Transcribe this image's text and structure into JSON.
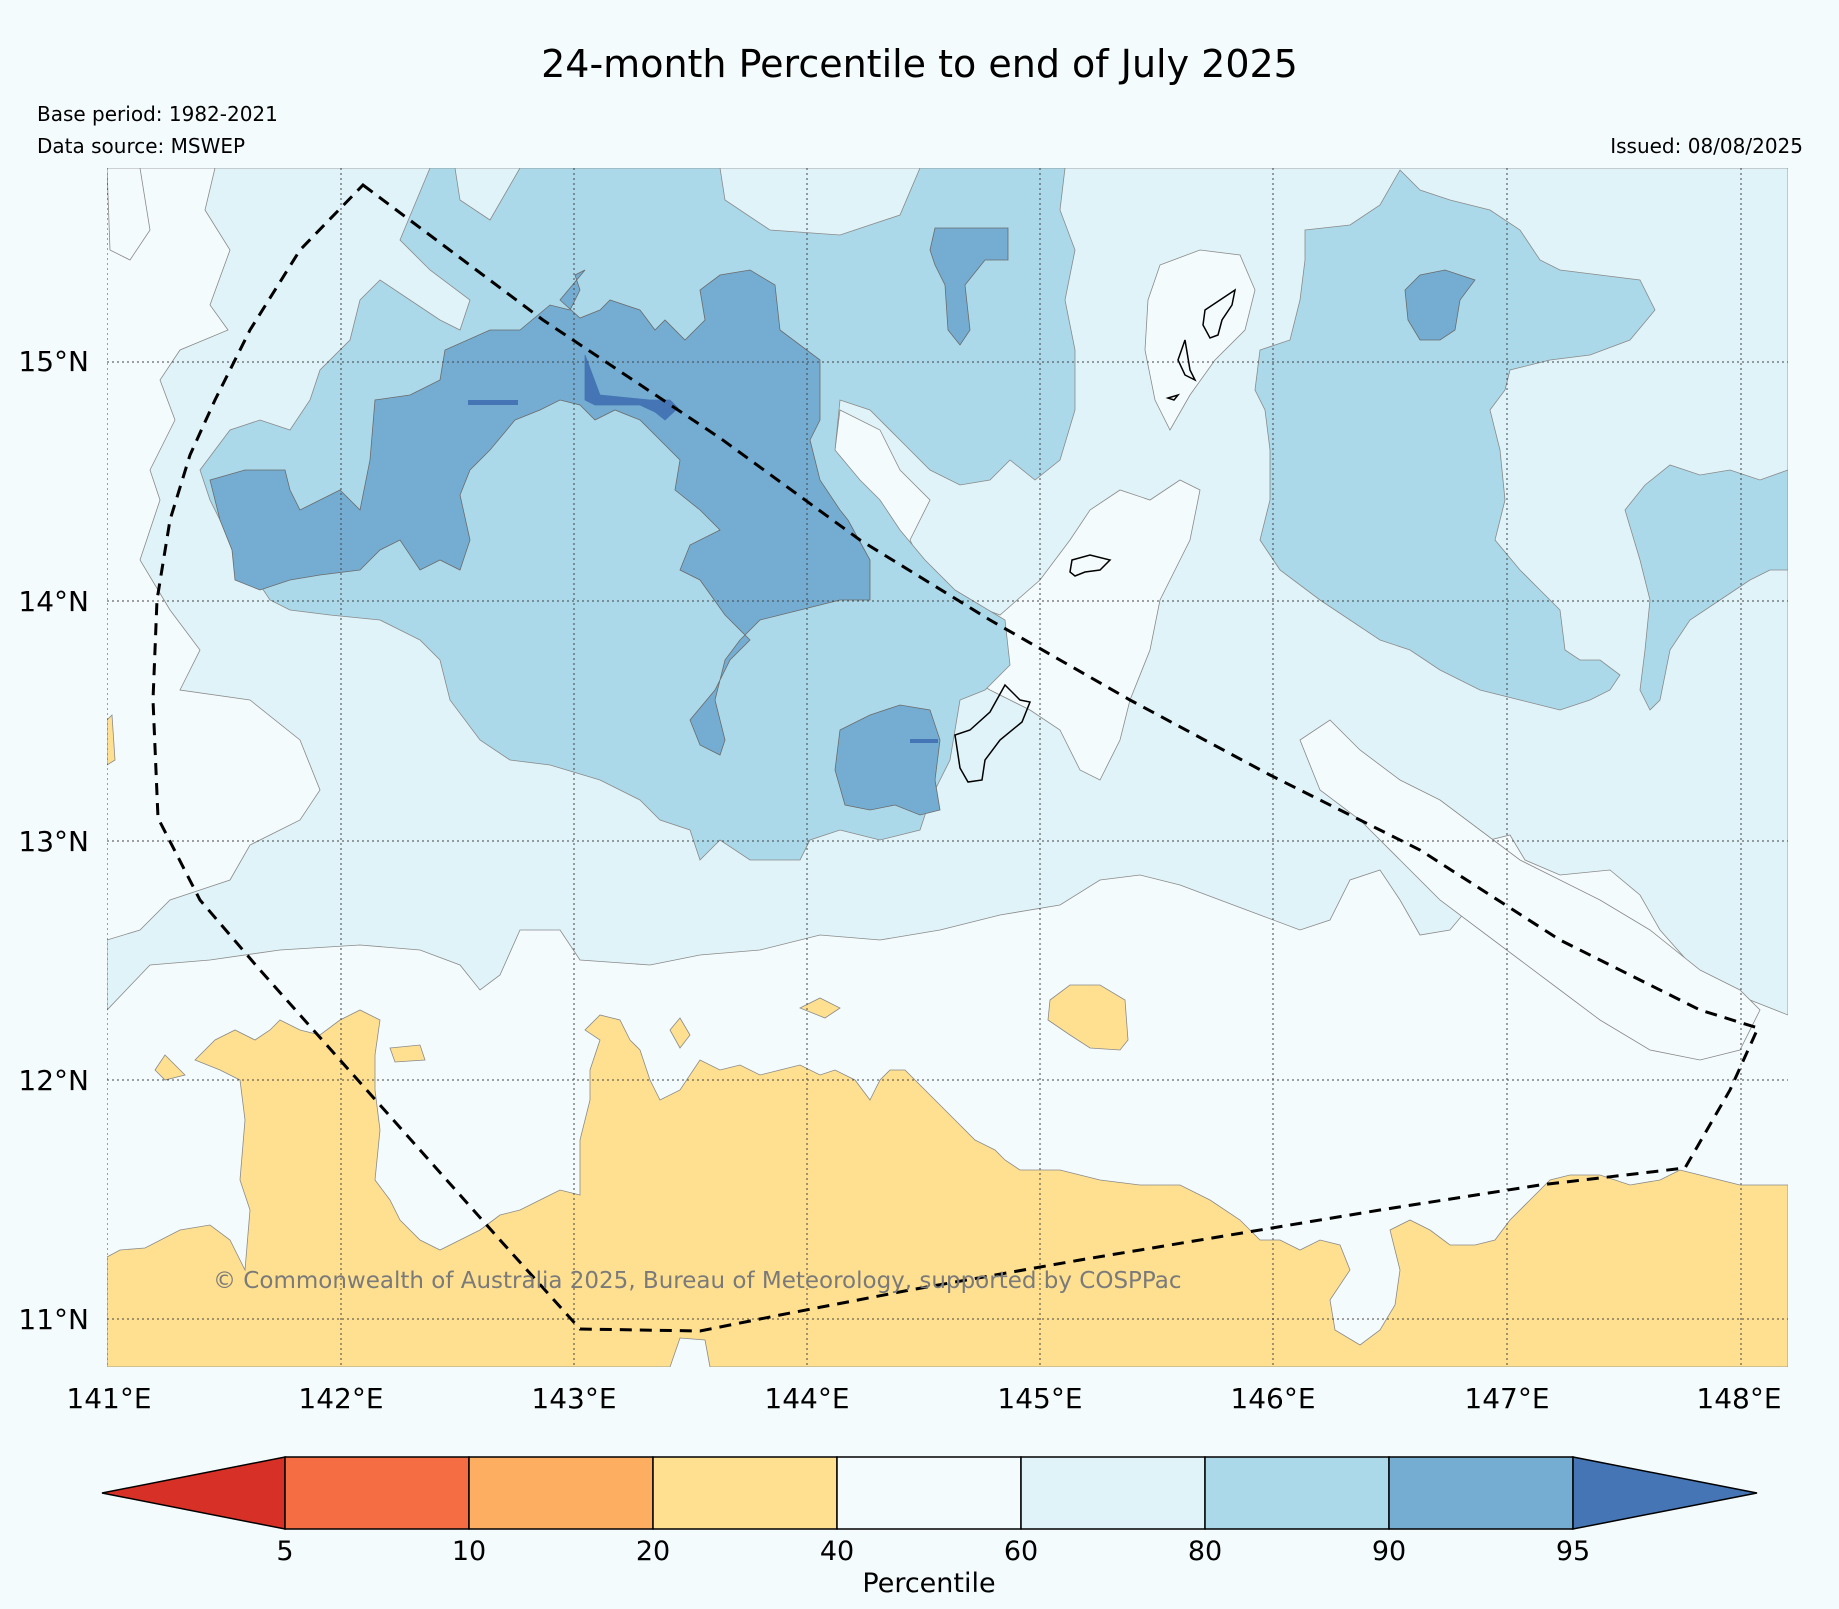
{
  "header": {
    "title": "24-month Percentile to end of July 2025",
    "base_period": "Base period: 1982-2021",
    "data_source": "Data source: MSWEP",
    "issued": "Issued: 08/08/2025"
  },
  "map": {
    "longitude_labels": [
      "141°E",
      "142°E",
      "143°E",
      "144°E",
      "145°E",
      "146°E",
      "147°E",
      "148°E"
    ],
    "latitude_labels": [
      "15°N",
      "14°N",
      "13°N",
      "12°N",
      "11°N"
    ],
    "copyright": "© Commonwealth of Australia 2025, Bureau of Meteorology, supported by COSPPac",
    "colors": {
      "below_5": "#d73027",
      "p5_10": "#f46d43",
      "p10_20": "#fdae61",
      "p20_40": "#fee090",
      "p40_60": "#f4fbfd",
      "p60_80": "#e0f3f8",
      "p80_90": "#abd9e9",
      "p90_95": "#74add1",
      "above_95": "#4575b4"
    }
  },
  "colorbar": {
    "ticks": [
      "5",
      "10",
      "20",
      "40",
      "60",
      "80",
      "90",
      "95"
    ],
    "label": "Percentile",
    "segments": [
      {
        "from": null,
        "to": 5,
        "color": "#d73027"
      },
      {
        "from": 5,
        "to": 10,
        "color": "#f46d43"
      },
      {
        "from": 10,
        "to": 20,
        "color": "#fdae61"
      },
      {
        "from": 20,
        "to": 40,
        "color": "#fee090"
      },
      {
        "from": 40,
        "to": 60,
        "color": "#f4fbfd"
      },
      {
        "from": 60,
        "to": 80,
        "color": "#e0f3f8"
      },
      {
        "from": 80,
        "to": 90,
        "color": "#abd9e9"
      },
      {
        "from": 90,
        "to": 95,
        "color": "#74add1"
      },
      {
        "from": 95,
        "to": null,
        "color": "#4575b4"
      }
    ]
  }
}
